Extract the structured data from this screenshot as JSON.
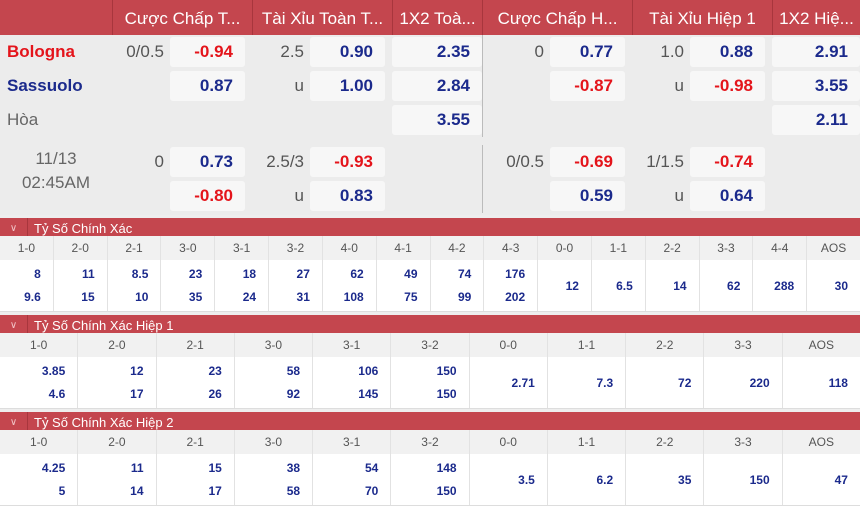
{
  "header": [
    "",
    "Cược Chấp T...",
    "Tài Xỉu Toàn T...",
    "1X2 Toà...",
    "Cược Chấp H...",
    "Tài Xỉu Hiệp 1",
    "1X2 Hiệ..."
  ],
  "teams": {
    "home": "Bologna",
    "away": "Sassuolo",
    "draw": "Hòa"
  },
  "colors": {
    "home": "#e4141b",
    "away": "#1b2a8c",
    "accent": "#c4464e"
  },
  "match_time": {
    "date": "11/13",
    "time": "02:45AM"
  },
  "main_odds": {
    "ft_hdp": {
      "line": "0/0.5",
      "home": "-0.94",
      "away": "0.87"
    },
    "ft_ou": {
      "line": "2.5",
      "over": "0.90",
      "under_label": "u",
      "under": "1.00"
    },
    "ft_1x2": {
      "home": "2.35",
      "away": "2.84",
      "draw": "3.55"
    },
    "h1_hdp": {
      "line": "0",
      "home": "0.77",
      "away": "-0.87"
    },
    "h1_ou": {
      "line": "1.0",
      "over": "0.88",
      "under_label": "u",
      "under": "-0.98"
    },
    "h1_1x2": {
      "home": "2.91",
      "away": "3.55",
      "draw": "2.11"
    }
  },
  "alt_odds": {
    "ft_hdp": {
      "line": "0",
      "home": "0.73",
      "away": "-0.80"
    },
    "ft_ou": {
      "line": "2.5/3",
      "over": "-0.93",
      "under_label": "u",
      "under": "0.83"
    },
    "h1_hdp": {
      "line": "0/0.5",
      "home": "-0.69",
      "away": "0.59"
    },
    "h1_ou": {
      "line": "1/1.5",
      "over": "-0.74",
      "under_label": "u",
      "under": "0.64"
    }
  },
  "sections": [
    {
      "title": "Tỷ Số Chính Xác",
      "cols": [
        [
          "1-0",
          "8",
          "9.6"
        ],
        [
          "2-0",
          "11",
          "15"
        ],
        [
          "2-1",
          "8.5",
          "10"
        ],
        [
          "3-0",
          "23",
          "35"
        ],
        [
          "3-1",
          "18",
          "24"
        ],
        [
          "3-2",
          "27",
          "31"
        ],
        [
          "4-0",
          "62",
          "108"
        ],
        [
          "4-1",
          "49",
          "75"
        ],
        [
          "4-2",
          "74",
          "99"
        ],
        [
          "4-3",
          "176",
          "202"
        ],
        [
          "0-0",
          "12"
        ],
        [
          "1-1",
          "6.5"
        ],
        [
          "2-2",
          "14"
        ],
        [
          "3-3",
          "62"
        ],
        [
          "4-4",
          "288"
        ],
        [
          "AOS",
          "30"
        ]
      ]
    },
    {
      "title": "Tỷ Số Chính Xác Hiệp 1",
      "cols": [
        [
          "1-0",
          "3.85",
          "4.6"
        ],
        [
          "2-0",
          "12",
          "17"
        ],
        [
          "2-1",
          "23",
          "26"
        ],
        [
          "3-0",
          "58",
          "92"
        ],
        [
          "3-1",
          "106",
          "145"
        ],
        [
          "3-2",
          "150",
          "150"
        ],
        [
          "0-0",
          "2.71"
        ],
        [
          "1-1",
          "7.3"
        ],
        [
          "2-2",
          "72"
        ],
        [
          "3-3",
          "220"
        ],
        [
          "AOS",
          "118"
        ]
      ]
    },
    {
      "title": "Tỷ Số Chính Xác Hiệp 2",
      "cols": [
        [
          "1-0",
          "4.25",
          "5"
        ],
        [
          "2-0",
          "11",
          "14"
        ],
        [
          "2-1",
          "15",
          "17"
        ],
        [
          "3-0",
          "38",
          "58"
        ],
        [
          "3-1",
          "54",
          "70"
        ],
        [
          "3-2",
          "148",
          "150"
        ],
        [
          "0-0",
          "3.5"
        ],
        [
          "1-1",
          "6.2"
        ],
        [
          "2-2",
          "35"
        ],
        [
          "3-3",
          "150"
        ],
        [
          "AOS",
          "47"
        ]
      ]
    }
  ]
}
